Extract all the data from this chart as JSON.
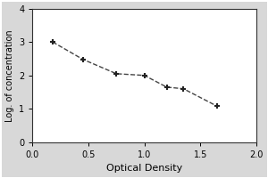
{
  "x_data": [
    0.18,
    0.45,
    0.75,
    1.0,
    1.2,
    1.35,
    1.65
  ],
  "y_data": [
    3.0,
    2.48,
    2.05,
    2.0,
    1.65,
    1.6,
    1.08
  ],
  "xlabel": "Optical Density",
  "ylabel": "Log. of concentration",
  "xlim": [
    0,
    2
  ],
  "ylim": [
    0,
    4
  ],
  "xticks": [
    0,
    0.5,
    1,
    1.5,
    2
  ],
  "yticks": [
    0,
    1,
    2,
    3,
    4
  ],
  "line_color": "#444444",
  "marker_color": "#222222",
  "figure_bg_color": "#d8d8d8",
  "plot_bg_color": "#ffffff",
  "marker": "+",
  "marker_size": 5,
  "marker_linewidth": 1.5,
  "line_style": "--",
  "line_width": 1.0,
  "xlabel_fontsize": 8,
  "ylabel_fontsize": 7,
  "tick_fontsize": 7,
  "figure_border_color": "#aaaaaa"
}
